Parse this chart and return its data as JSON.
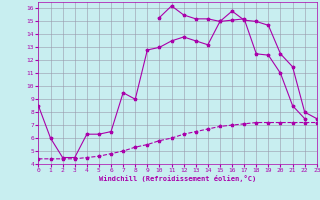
{
  "xlabel": "Windchill (Refroidissement éolien,°C)",
  "background_color": "#c8eef0",
  "grid_color": "#9999aa",
  "line_color": "#aa00aa",
  "xmin": 0,
  "xmax": 23,
  "ymin": 4,
  "ymax": 16.5,
  "line1_x": [
    0,
    1,
    2,
    3,
    4,
    5,
    6,
    7,
    8,
    9,
    10,
    11,
    12,
    13,
    14,
    15,
    16,
    17,
    18,
    19,
    20,
    21,
    22,
    23
  ],
  "line1_y": [
    4.4,
    4.4,
    4.4,
    4.4,
    4.5,
    4.6,
    4.8,
    5.0,
    5.3,
    5.5,
    5.8,
    6.0,
    6.3,
    6.5,
    6.7,
    6.9,
    7.0,
    7.1,
    7.2,
    7.2,
    7.2,
    7.2,
    7.2,
    7.2
  ],
  "line2_x": [
    0,
    1,
    2,
    3,
    4,
    5,
    6,
    7,
    8,
    9,
    10,
    11,
    12,
    13,
    14,
    15,
    16,
    17,
    18,
    19,
    20,
    21,
    22
  ],
  "line2_y": [
    8.5,
    6.0,
    4.5,
    4.5,
    6.3,
    6.3,
    6.5,
    9.5,
    9.0,
    12.8,
    13.0,
    13.5,
    13.8,
    13.5,
    13.2,
    15.0,
    15.1,
    15.2,
    12.5,
    12.4,
    11.0,
    8.5,
    7.5
  ],
  "line3_x": [
    10,
    11,
    12,
    13,
    14,
    15,
    16,
    17,
    18,
    19,
    20,
    21,
    22,
    23
  ],
  "line3_y": [
    15.3,
    16.2,
    15.5,
    15.2,
    15.2,
    15.0,
    15.8,
    15.1,
    15.0,
    14.7,
    12.5,
    11.5,
    8.0,
    7.5
  ],
  "xticks": [
    0,
    1,
    2,
    3,
    4,
    5,
    6,
    7,
    8,
    9,
    10,
    11,
    12,
    13,
    14,
    15,
    16,
    17,
    18,
    19,
    20,
    21,
    22,
    23
  ],
  "yticks": [
    4,
    5,
    6,
    7,
    8,
    9,
    10,
    11,
    12,
    13,
    14,
    15,
    16
  ]
}
